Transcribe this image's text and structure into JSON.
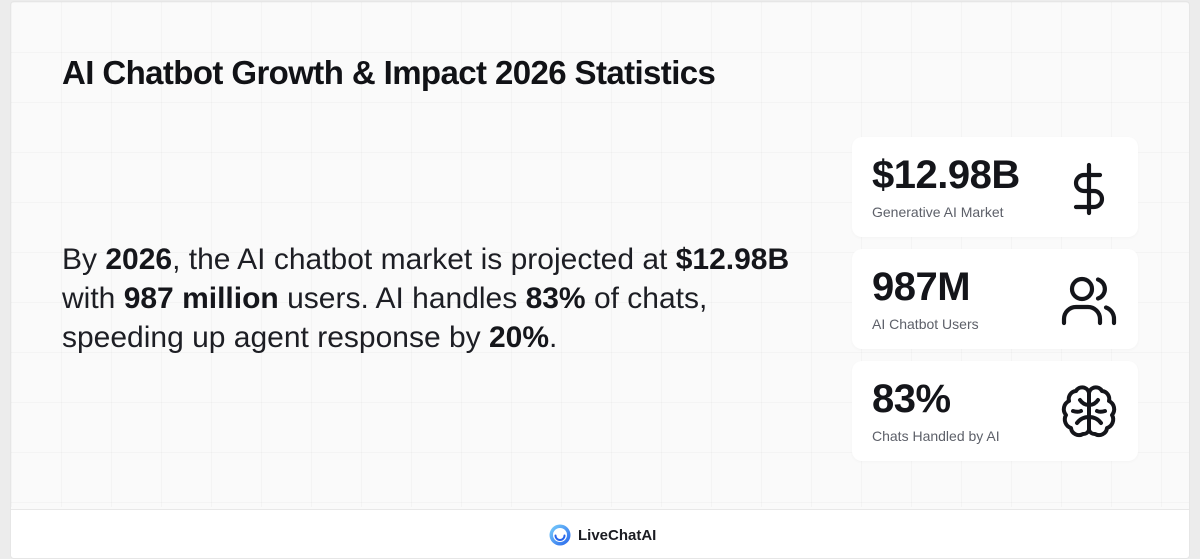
{
  "title": "AI Chatbot Growth & Impact 2026 Statistics",
  "summary": {
    "t1": "By ",
    "b1": "2026",
    "t2": ", the AI chatbot market is projected at ",
    "b2": "$12.98B",
    "t3": " with ",
    "b3": "987 million",
    "t4": " users. AI handles ",
    "b4": "83%",
    "t5": " of chats, speeding up agent response by ",
    "b5": "20%",
    "t6": "."
  },
  "stats": [
    {
      "value": "$12.98B",
      "label": "Generative AI Market",
      "icon": "dollar-icon"
    },
    {
      "value": "987M",
      "label": "AI Chatbot Users",
      "icon": "users-icon"
    },
    {
      "value": "83%",
      "label": "Chats Handled by AI",
      "icon": "brain-icon"
    }
  ],
  "footer": {
    "brand": "LiveChatAI",
    "logo_icon": "livechatai-logo-icon"
  },
  "colors": {
    "text": "#14151a",
    "muted": "#5d6069",
    "card_bg": "#ffffff",
    "page_bg": "#fafafa",
    "logo_blue": "#3b82f6"
  }
}
